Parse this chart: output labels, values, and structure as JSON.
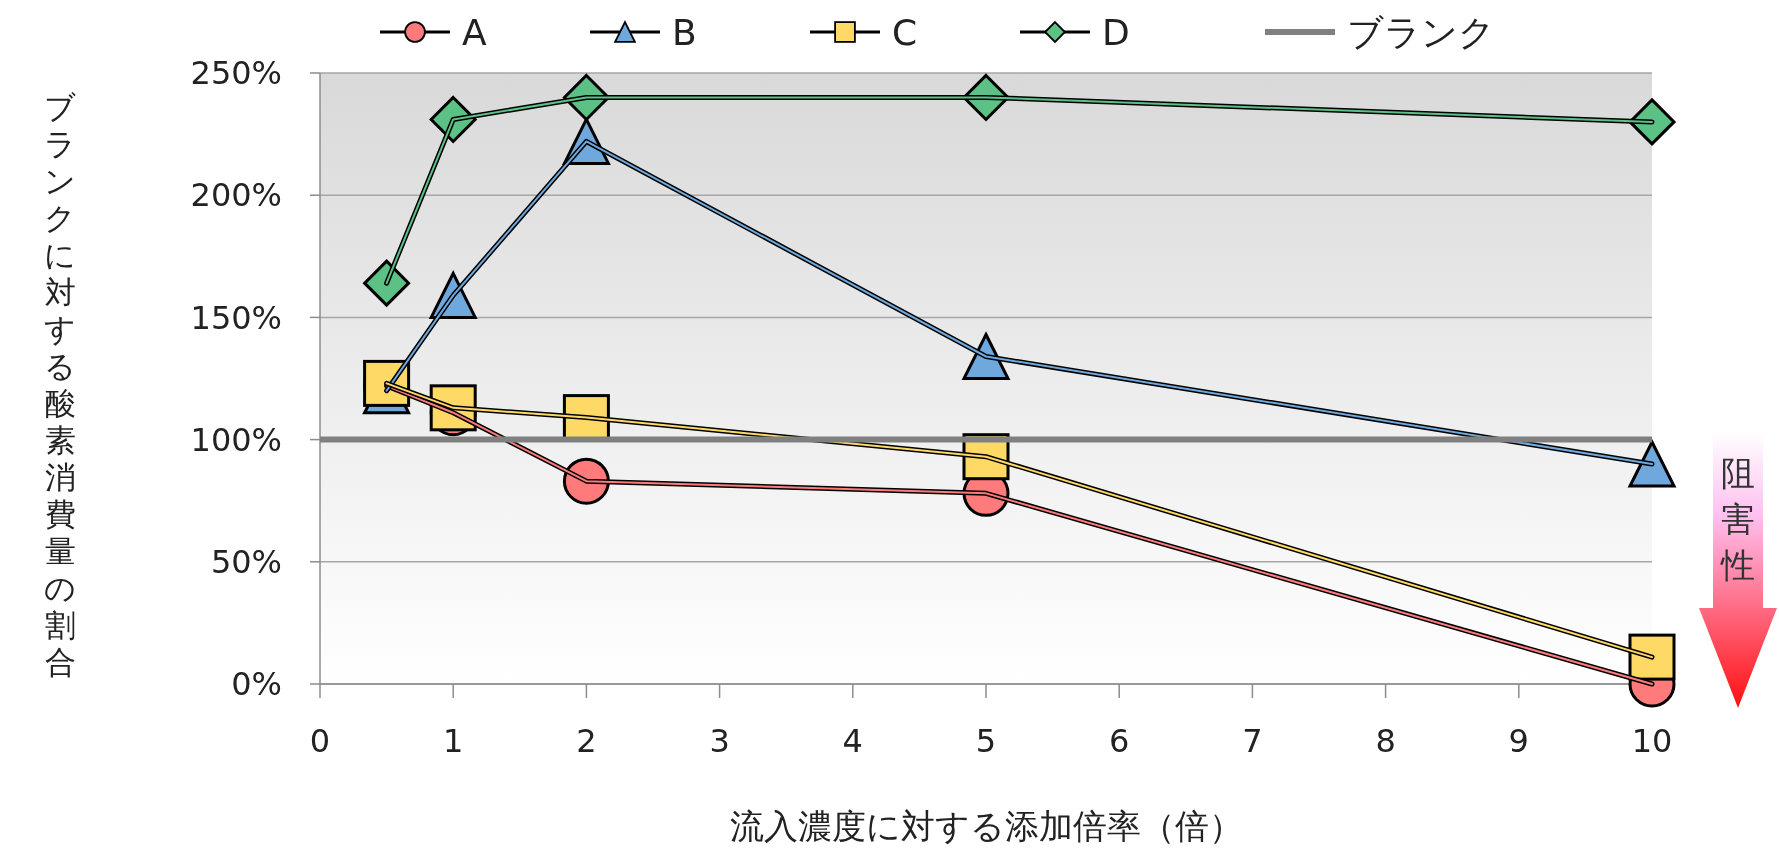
{
  "chart_data": {
    "type": "line",
    "xlabel": "流入濃度に対する添加倍率（倍）",
    "ylabel": "ブランクに対する酸素消費量の割合",
    "xlim": [
      0,
      10
    ],
    "xticks": [
      0,
      1,
      2,
      3,
      4,
      5,
      6,
      7,
      8,
      9,
      10
    ],
    "ylim": [
      0,
      250
    ],
    "yticks": [
      {
        "value": 0,
        "label": "0%"
      },
      {
        "value": 50,
        "label": "50%"
      },
      {
        "value": 100,
        "label": "100%"
      },
      {
        "value": 150,
        "label": "150%"
      },
      {
        "value": 200,
        "label": "200%"
      },
      {
        "value": 250,
        "label": "250%"
      }
    ],
    "grid": "y",
    "legend": "top",
    "line_style": "solid",
    "x": [
      0.5,
      1,
      2,
      5,
      10
    ],
    "series": [
      {
        "name": "A",
        "color": "#ff7b7b",
        "marker": "circle",
        "values": [
          122,
          111,
          83,
          78,
          0
        ]
      },
      {
        "name": "B",
        "color": "#6fa8dc",
        "marker": "triangle",
        "values": [
          120,
          159,
          222,
          134,
          90
        ]
      },
      {
        "name": "C",
        "color": "#ffd966",
        "marker": "square",
        "values": [
          123,
          113,
          109,
          93,
          11
        ]
      },
      {
        "name": "D",
        "color": "#5cc185",
        "marker": "diamond",
        "values": [
          164,
          231,
          240,
          240,
          230
        ]
      },
      {
        "name": "ブランク",
        "color": "#808080",
        "marker": "none",
        "x": [
          0,
          10
        ],
        "values": [
          100,
          100
        ]
      }
    ],
    "annotations": [
      "阻害性"
    ]
  }
}
